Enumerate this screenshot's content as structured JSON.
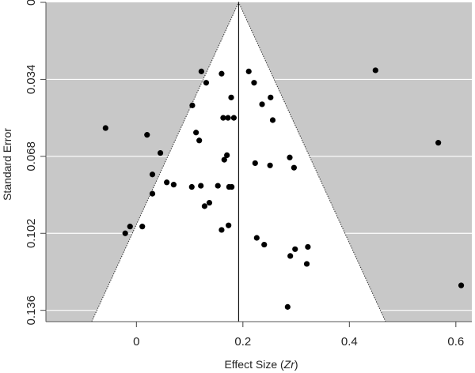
{
  "chart_data": {
    "type": "scatter",
    "subtype": "funnel_plot",
    "xlabel": "Effect Size",
    "xlabel_italic_part": "Zr",
    "ylabel": "Standard Error",
    "xlim": [
      -0.17,
      0.63
    ],
    "ylim": [
      0,
      0.141
    ],
    "y_inverted": true,
    "xticks": [
      0,
      0.2,
      0.4,
      0.6
    ],
    "xtick_labels": [
      "0",
      "0.2",
      "0.4",
      "0.6"
    ],
    "yticks": [
      0,
      0.034,
      0.068,
      0.102,
      0.136
    ],
    "ytick_labels": [
      "0",
      "0.034",
      "0.068",
      "0.102",
      "0.136"
    ],
    "funnel": {
      "center": 0.192,
      "base_y": 0.141,
      "left_base_x": -0.084,
      "right_base_x": 0.468
    },
    "grid": true,
    "colors": {
      "panel": "#c8c8c8",
      "funnel": "#ffffff",
      "grid": "#ffffff",
      "points": "#000000"
    },
    "points": [
      {
        "x": 0.122,
        "y": 0.0305
      },
      {
        "x": 0.131,
        "y": 0.0355
      },
      {
        "x": 0.16,
        "y": 0.0315
      },
      {
        "x": 0.211,
        "y": 0.0305
      },
      {
        "x": 0.221,
        "y": 0.0355
      },
      {
        "x": 0.449,
        "y": 0.03
      },
      {
        "x": 0.178,
        "y": 0.042
      },
      {
        "x": 0.252,
        "y": 0.042
      },
      {
        "x": 0.105,
        "y": 0.0455
      },
      {
        "x": 0.236,
        "y": 0.045
      },
      {
        "x": 0.163,
        "y": 0.051
      },
      {
        "x": 0.172,
        "y": 0.051
      },
      {
        "x": 0.183,
        "y": 0.051
      },
      {
        "x": 0.256,
        "y": 0.052
      },
      {
        "x": -0.058,
        "y": 0.0555
      },
      {
        "x": 0.02,
        "y": 0.0585
      },
      {
        "x": 0.112,
        "y": 0.0575
      },
      {
        "x": 0.118,
        "y": 0.061
      },
      {
        "x": 0.567,
        "y": 0.062
      },
      {
        "x": 0.045,
        "y": 0.0665
      },
      {
        "x": 0.17,
        "y": 0.0675
      },
      {
        "x": 0.165,
        "y": 0.0695
      },
      {
        "x": 0.223,
        "y": 0.071
      },
      {
        "x": 0.251,
        "y": 0.072
      },
      {
        "x": 0.288,
        "y": 0.0685
      },
      {
        "x": 0.296,
        "y": 0.073
      },
      {
        "x": 0.03,
        "y": 0.076
      },
      {
        "x": 0.057,
        "y": 0.0795
      },
      {
        "x": 0.07,
        "y": 0.0805
      },
      {
        "x": 0.104,
        "y": 0.0815
      },
      {
        "x": 0.121,
        "y": 0.081
      },
      {
        "x": 0.153,
        "y": 0.081
      },
      {
        "x": 0.174,
        "y": 0.0815
      },
      {
        "x": 0.179,
        "y": 0.0815
      },
      {
        "x": 0.03,
        "y": 0.0845
      },
      {
        "x": 0.137,
        "y": 0.0885
      },
      {
        "x": 0.128,
        "y": 0.09
      },
      {
        "x": -0.012,
        "y": 0.099
      },
      {
        "x": 0.011,
        "y": 0.099
      },
      {
        "x": -0.021,
        "y": 0.102
      },
      {
        "x": 0.173,
        "y": 0.0985
      },
      {
        "x": 0.16,
        "y": 0.1005
      },
      {
        "x": 0.226,
        "y": 0.104
      },
      {
        "x": 0.24,
        "y": 0.107
      },
      {
        "x": 0.298,
        "y": 0.109
      },
      {
        "x": 0.322,
        "y": 0.108
      },
      {
        "x": 0.289,
        "y": 0.112
      },
      {
        "x": 0.32,
        "y": 0.1155
      },
      {
        "x": 0.61,
        "y": 0.125
      },
      {
        "x": 0.284,
        "y": 0.1345
      }
    ]
  }
}
